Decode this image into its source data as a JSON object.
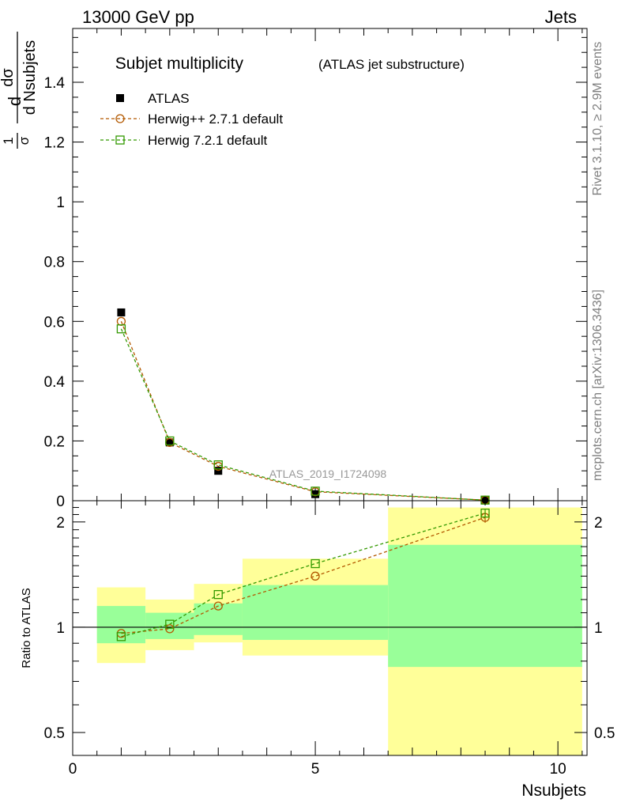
{
  "header": {
    "left": "13000 GeV pp",
    "right": "Jets"
  },
  "side_labels": {
    "rivet": "Rivet 3.1.10, ≥ 2.9M events",
    "mcplots": "mcplots.cern.ch [arXiv:1306.3436]"
  },
  "watermark": "ATLAS_2019_I1724098",
  "chart_data": [
    {
      "type": "scatter",
      "title": "Subjet multiplicity",
      "subtitle": "(ATLAS jet substructure)",
      "ylabel_top": "1 dσ",
      "ylabel_frac_top": "dσ",
      "ylabel_frac_bottom": "d Nsubjets",
      "ylabel_prefix_num": "1",
      "ylabel_prefix_den": "σ",
      "ylabel_prefix_d": "d",
      "xlim": [
        0,
        10.6
      ],
      "ylim": [
        0,
        1.58
      ],
      "yticks": [
        0,
        0.2,
        0.4,
        0.6,
        0.8,
        1,
        1.2,
        1.4
      ],
      "ytick_labels": [
        "0",
        "0.2",
        "0.4",
        "0.6",
        "0.8",
        "1",
        "1.2",
        "1.4"
      ],
      "legend_position": "top-left",
      "series": [
        {
          "name": "ATLAS",
          "color": "#000000",
          "marker": "filled-square",
          "x": [
            1,
            2,
            3,
            5,
            8.5
          ],
          "y": [
            0.63,
            0.195,
            0.1,
            0.022,
            0.001
          ]
        },
        {
          "name": "Herwig++ 2.7.1 default",
          "color": "#b35900",
          "marker": "open-circle",
          "x": [
            1,
            2,
            3,
            5,
            8.5
          ],
          "y": [
            0.6,
            0.195,
            0.115,
            0.03,
            0.002
          ]
        },
        {
          "name": "Herwig 7.2.1 default",
          "color": "#339900",
          "marker": "open-square",
          "x": [
            1,
            2,
            3,
            5,
            8.5
          ],
          "y": [
            0.575,
            0.2,
            0.12,
            0.032,
            0.002
          ]
        }
      ]
    },
    {
      "type": "scatter",
      "ylabel": "Ratio to ATLAS",
      "xlabel": "Nsubjets",
      "log_y": true,
      "xlim": [
        0,
        10.6
      ],
      "ylim": [
        0.43,
        2.3
      ],
      "xticks": [
        0,
        5,
        10
      ],
      "xtick_labels": [
        "0",
        "5",
        "10"
      ],
      "yticks": [
        0.5,
        1,
        2
      ],
      "ytick_labels": [
        "0.5",
        "1",
        "2"
      ],
      "bands": [
        {
          "x0": 0.5,
          "x1": 1.5,
          "inner": [
            0.9,
            1.15
          ],
          "outer": [
            0.79,
            1.3
          ]
        },
        {
          "x0": 1.5,
          "x1": 2.5,
          "inner": [
            0.925,
            1.1
          ],
          "outer": [
            0.86,
            1.2
          ]
        },
        {
          "x0": 2.5,
          "x1": 3.5,
          "inner": [
            0.95,
            1.17
          ],
          "outer": [
            0.905,
            1.33
          ]
        },
        {
          "x0": 3.5,
          "x1": 6.5,
          "inner": [
            0.92,
            1.32
          ],
          "outer": [
            0.83,
            1.57
          ]
        },
        {
          "x0": 6.5,
          "x1": 10.5,
          "inner": [
            0.77,
            1.72
          ],
          "outer": [
            0.42,
            2.2
          ]
        }
      ],
      "series": [
        {
          "name": "Herwig++ 2.7.1 default",
          "color": "#b35900",
          "marker": "open-circle",
          "x": [
            1,
            2,
            3,
            5,
            8.5
          ],
          "y": [
            0.96,
            0.99,
            1.15,
            1.4,
            2.06
          ],
          "yerr": [
            0,
            0,
            0,
            0,
            0.07
          ]
        },
        {
          "name": "Herwig 7.2.1 default",
          "color": "#339900",
          "marker": "open-square",
          "x": [
            1,
            2,
            3,
            5,
            8.5
          ],
          "y": [
            0.94,
            1.02,
            1.24,
            1.52,
            2.12
          ],
          "yerr": [
            0,
            0,
            0,
            0,
            0.05
          ]
        }
      ]
    }
  ]
}
